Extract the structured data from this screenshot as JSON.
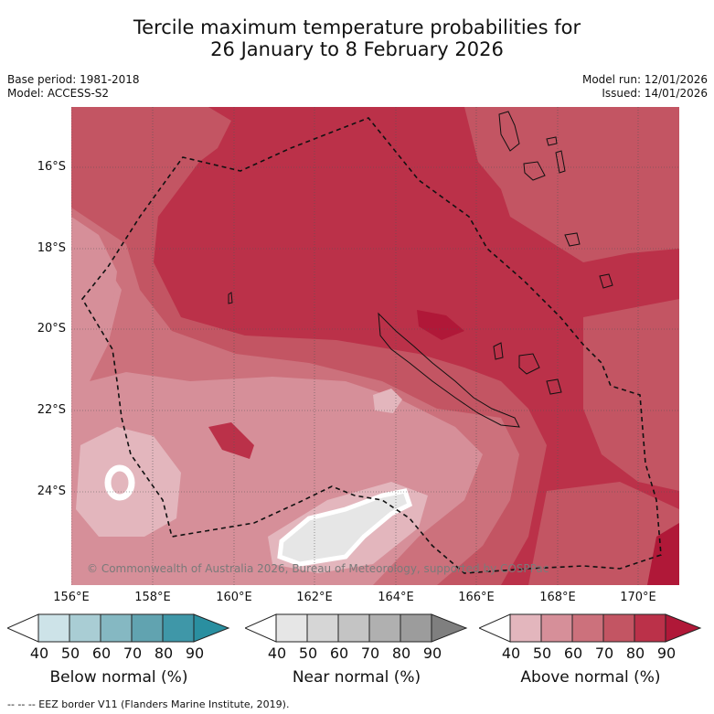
{
  "title": {
    "line1": "Tercile maximum temperature probabilities for",
    "line2": "26 January to 8 February 2026"
  },
  "meta": {
    "base_period": "Base period: 1981-2018",
    "model": "Model: ACCESS-S2",
    "model_run": "Model run: 12/01/2026",
    "issued": "Issued: 14/01/2026"
  },
  "map": {
    "lat_labels": [
      "16°S",
      "18°S",
      "20°S",
      "22°S",
      "24°S"
    ],
    "lon_labels": [
      "156°E",
      "158°E",
      "160°E",
      "162°E",
      "164°E",
      "166°E",
      "168°E",
      "170°E"
    ],
    "copyright": "© Commonwealth of Australia 2026, Bureau of Meteorology, supported by COSPPac"
  },
  "legends": [
    {
      "title": "Below normal (%)",
      "ticks": [
        "40",
        "50",
        "60",
        "70",
        "80",
        "90"
      ],
      "colors": [
        "#ffffff",
        "#cde3e8",
        "#a9cdd4",
        "#85b8c2",
        "#61a3b0",
        "#3f97a8",
        "#2a8fa0"
      ]
    },
    {
      "title": "Near normal (%)",
      "ticks": [
        "40",
        "50",
        "60",
        "70",
        "80",
        "90"
      ],
      "colors": [
        "#ffffff",
        "#e6e6e6",
        "#d6d6d6",
        "#c4c4c4",
        "#b0b0b0",
        "#9c9c9c",
        "#7f7f7f"
      ]
    },
    {
      "title": "Above normal (%)",
      "ticks": [
        "40",
        "50",
        "60",
        "70",
        "80",
        "90"
      ],
      "colors": [
        "#ffffff",
        "#e3b6bd",
        "#d68f99",
        "#cc717c",
        "#c35563",
        "#bb3149",
        "#b01838"
      ]
    }
  ],
  "footer": "-- -- -- EEZ border V11 (Flanders Marine Institute, 2019)."
}
